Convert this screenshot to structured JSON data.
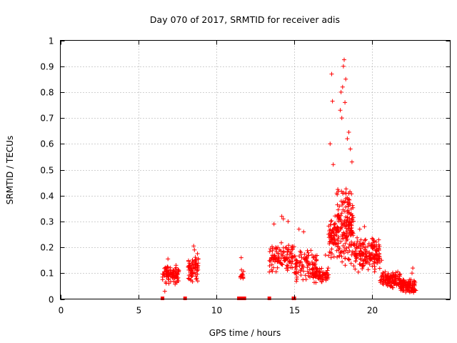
{
  "chart_data": {
    "type": "scatter",
    "title": "Day 070 of 2017, SRMTID for receiver adis",
    "xlabel": "GPS time / hours",
    "ylabel": "SRMTID / TECUs",
    "xlim": [
      0,
      25
    ],
    "ylim": [
      0,
      1
    ],
    "x_ticks": [
      0,
      5,
      10,
      15,
      20
    ],
    "x_tick_labels": [
      "0",
      "5",
      "10",
      "15",
      "20"
    ],
    "y_ticks": [
      0,
      0.1,
      0.2,
      0.3,
      0.4,
      0.5,
      0.6,
      0.7,
      0.8,
      0.9,
      1
    ],
    "y_tick_labels": [
      "0",
      "0.1",
      "0.2",
      "0.3",
      "0.4",
      "0.5",
      "0.6",
      "0.7",
      "0.8",
      "0.9",
      "1"
    ],
    "grid": true,
    "marker": "+",
    "color": "#ff0000",
    "series": [
      {
        "name": "SRMTID",
        "clusters": [
          {
            "x_range": [
              6.55,
              7.6
            ],
            "y_range": [
              0.05,
              0.14
            ],
            "count": 95,
            "extra": [
              [
                6.7,
                0.03
              ],
              [
                6.9,
                0.155
              ]
            ]
          },
          {
            "x_range": [
              8.2,
              8.85
            ],
            "y_range": [
              0.06,
              0.18
            ],
            "count": 70,
            "extra": [
              [
                8.55,
                0.205
              ],
              [
                8.6,
                0.19
              ]
            ]
          },
          {
            "x_range": [
              11.55,
              11.75
            ],
            "y_range": [
              0.07,
              0.12
            ],
            "count": 12,
            "extra": [
              [
                11.6,
                0.16
              ]
            ]
          },
          {
            "x_range": [
              13.4,
              15.0
            ],
            "y_range": [
              0.1,
              0.22
            ],
            "count": 110,
            "extra": [
              [
                14.2,
                0.32
              ],
              [
                14.3,
                0.31
              ],
              [
                13.7,
                0.29
              ],
              [
                14.6,
                0.3
              ]
            ]
          },
          {
            "x_range": [
              15.0,
              16.5
            ],
            "y_range": [
              0.06,
              0.2
            ],
            "count": 100,
            "extra": [
              [
                15.3,
                0.27
              ],
              [
                15.6,
                0.26
              ]
            ]
          },
          {
            "x_range": [
              16.2,
              17.2
            ],
            "y_range": [
              0.06,
              0.13
            ],
            "count": 70,
            "extra": [
              [
                17.0,
                0.17
              ]
            ]
          },
          {
            "x_range": [
              17.2,
              17.7
            ],
            "y_range": [
              0.15,
              0.33
            ],
            "count": 60,
            "extra": [
              [
                17.4,
                0.87
              ],
              [
                17.45,
                0.765
              ],
              [
                17.3,
                0.6
              ],
              [
                17.5,
                0.52
              ]
            ]
          },
          {
            "x_range": [
              17.7,
              18.8
            ],
            "y_range": [
              0.12,
              0.45
            ],
            "count": 190,
            "extra": [
              [
                18.2,
                0.925
              ],
              [
                18.15,
                0.9
              ],
              [
                18.3,
                0.85
              ],
              [
                18.1,
                0.82
              ],
              [
                18.0,
                0.8
              ],
              [
                18.25,
                0.76
              ],
              [
                17.95,
                0.73
              ],
              [
                18.5,
                0.645
              ],
              [
                18.4,
                0.62
              ],
              [
                18.6,
                0.58
              ],
              [
                18.7,
                0.53
              ],
              [
                18.05,
                0.7
              ]
            ]
          },
          {
            "x_range": [
              18.8,
              20.5
            ],
            "y_range": [
              0.1,
              0.24
            ],
            "count": 170,
            "extra": [
              [
                19.5,
                0.28
              ],
              [
                19.2,
                0.27
              ]
            ]
          },
          {
            "x_range": [
              20.5,
              21.8
            ],
            "y_range": [
              0.04,
              0.11
            ],
            "count": 120,
            "extra": [
              [
                20.6,
                0.15
              ]
            ]
          },
          {
            "x_range": [
              21.8,
              22.8
            ],
            "y_range": [
              0.02,
              0.08
            ],
            "count": 110,
            "extra": [
              [
                22.6,
                0.12
              ],
              [
                22.55,
                0.1
              ]
            ]
          }
        ],
        "zero_markers": [
          6.55,
          8.0,
          11.45,
          11.6,
          11.8,
          13.4,
          14.95,
          15.0
        ]
      }
    ]
  }
}
